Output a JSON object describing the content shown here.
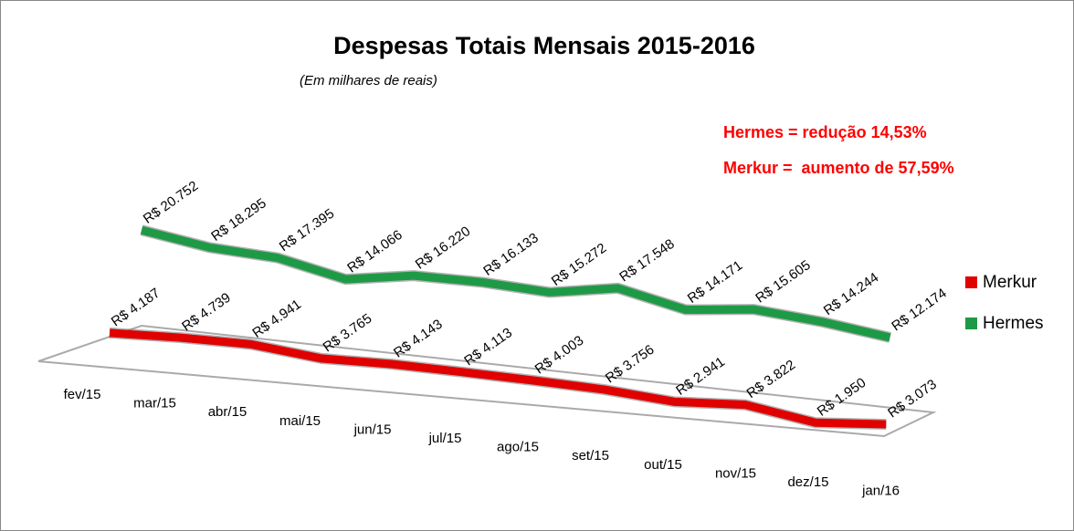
{
  "chart_data": {
    "type": "line",
    "title": "Despesas Totais Mensais 2015-2016",
    "subtitle": "(Em milhares de reais)",
    "annotations": [
      "Hermes = redução 14,53%",
      "Merkur =  aumento de 57,59%"
    ],
    "categories": [
      "fev/15",
      "mar/15",
      "abr/15",
      "mai/15",
      "jun/15",
      "jul/15",
      "ago/15",
      "set/15",
      "out/15",
      "nov/15",
      "dez/15",
      "jan/16"
    ],
    "series": [
      {
        "name": "Merkur",
        "color": "#e00000",
        "values": [
          4187,
          4739,
          4941,
          3765,
          4143,
          4113,
          4003,
          3756,
          2941,
          3822,
          1950,
          3073
        ],
        "value_labels": [
          "R$ 4.187",
          "R$ 4.739",
          "R$ 4.941",
          "R$ 3.765",
          "R$ 4.143",
          "R$ 4.113",
          "R$ 4.003",
          "R$ 3.756",
          "R$ 2.941",
          "R$ 3.822",
          "R$ 1.950",
          "R$ 3.073"
        ]
      },
      {
        "name": "Hermes",
        "color": "#1e9a46",
        "values": [
          20752,
          18295,
          17395,
          14066,
          16220,
          16133,
          15272,
          17548,
          14171,
          15605,
          14244,
          12174
        ],
        "value_labels": [
          "R$ 20.752",
          "R$ 18.295",
          "R$ 17.395",
          "R$ 14.066",
          "R$ 16.220",
          "R$ 16.133",
          "R$ 15.272",
          "R$ 17.548",
          "R$ 14.171",
          "R$ 15.605",
          "R$ 14.244",
          "R$ 12.174"
        ]
      }
    ],
    "legend": "right"
  }
}
